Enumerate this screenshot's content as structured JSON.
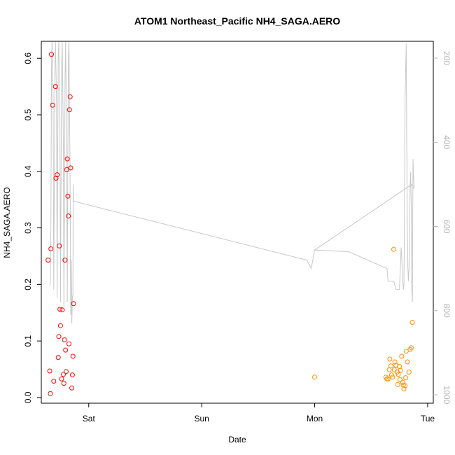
{
  "chart_data": {
    "type": "scatter",
    "title": "ATOM1 Northeast_Pacific NH4_SAGA.AERO",
    "xlabel": "Date",
    "ylabel": "NH4_SAGA.AERO",
    "x_unit": "days",
    "xlim": [
      -0.42,
      3.05
    ],
    "ylim": [
      -0.01,
      0.63
    ],
    "y_ticks": [
      0.0,
      0.1,
      0.2,
      0.3,
      0.4,
      0.5,
      0.6
    ],
    "y_tick_labels": [
      "0.0",
      "0.1",
      "0.2",
      "0.3",
      "0.4",
      "0.5",
      "0.6"
    ],
    "x_ticks": [
      0,
      1,
      2,
      3
    ],
    "x_tick_labels": [
      "Sat",
      "Sun",
      "Mon",
      "Tue"
    ],
    "right_axis": {
      "label": "",
      "reversed": true,
      "lim": [
        160,
        1020
      ],
      "ticks": [
        200,
        400,
        600,
        800,
        1000
      ],
      "tick_labels": [
        "200",
        "400",
        "600",
        "800",
        "1000"
      ],
      "color": "#b3b3b3"
    },
    "grid": false,
    "series": [
      {
        "color": "#ff0000",
        "marker": "open-circle",
        "points": [
          {
            "x": -0.36,
            "y": 0.243
          },
          {
            "x": -0.345,
            "y": 0.047
          },
          {
            "x": -0.34,
            "y": 0.007
          },
          {
            "x": -0.335,
            "y": 0.263
          },
          {
            "x": -0.33,
            "y": 0.607
          },
          {
            "x": -0.32,
            "y": 0.517
          },
          {
            "x": -0.31,
            "y": 0.029
          },
          {
            "x": -0.295,
            "y": 0.55
          },
          {
            "x": -0.29,
            "y": 0.388
          },
          {
            "x": -0.28,
            "y": 0.394
          },
          {
            "x": -0.27,
            "y": 0.071
          },
          {
            "x": -0.265,
            "y": 0.108
          },
          {
            "x": -0.26,
            "y": 0.268
          },
          {
            "x": -0.255,
            "y": 0.156
          },
          {
            "x": -0.25,
            "y": 0.127
          },
          {
            "x": -0.24,
            "y": 0.033
          },
          {
            "x": -0.235,
            "y": 0.155
          },
          {
            "x": -0.225,
            "y": 0.041
          },
          {
            "x": -0.22,
            "y": 0.025
          },
          {
            "x": -0.215,
            "y": 0.102
          },
          {
            "x": -0.21,
            "y": 0.243
          },
          {
            "x": -0.205,
            "y": 0.084
          },
          {
            "x": -0.2,
            "y": 0.046
          },
          {
            "x": -0.195,
            "y": 0.403
          },
          {
            "x": -0.19,
            "y": 0.422
          },
          {
            "x": -0.185,
            "y": 0.356
          },
          {
            "x": -0.18,
            "y": 0.321
          },
          {
            "x": -0.175,
            "y": 0.095
          },
          {
            "x": -0.17,
            "y": 0.509
          },
          {
            "x": -0.165,
            "y": 0.532
          },
          {
            "x": -0.16,
            "y": 0.406
          },
          {
            "x": -0.15,
            "y": 0.017
          },
          {
            "x": -0.145,
            "y": 0.04
          },
          {
            "x": -0.14,
            "y": 0.073
          },
          {
            "x": -0.135,
            "y": 0.166
          }
        ]
      },
      {
        "color": "#ff8c00",
        "marker": "open-circle",
        "points": [
          {
            "x": 2.0,
            "y": 0.036
          },
          {
            "x": 2.63,
            "y": 0.036
          },
          {
            "x": 2.64,
            "y": 0.033
          },
          {
            "x": 2.65,
            "y": 0.033
          },
          {
            "x": 2.66,
            "y": 0.049
          },
          {
            "x": 2.665,
            "y": 0.068
          },
          {
            "x": 2.675,
            "y": 0.056
          },
          {
            "x": 2.68,
            "y": 0.04
          },
          {
            "x": 2.69,
            "y": 0.036
          },
          {
            "x": 2.7,
            "y": 0.262
          },
          {
            "x": 2.705,
            "y": 0.049
          },
          {
            "x": 2.71,
            "y": 0.063
          },
          {
            "x": 2.72,
            "y": 0.057
          },
          {
            "x": 2.73,
            "y": 0.045
          },
          {
            "x": 2.735,
            "y": 0.023
          },
          {
            "x": 2.74,
            "y": 0.041
          },
          {
            "x": 2.75,
            "y": 0.055
          },
          {
            "x": 2.755,
            "y": 0.032
          },
          {
            "x": 2.76,
            "y": 0.048
          },
          {
            "x": 2.77,
            "y": 0.073
          },
          {
            "x": 2.78,
            "y": 0.027
          },
          {
            "x": 2.785,
            "y": 0.022
          },
          {
            "x": 2.79,
            "y": 0.015
          },
          {
            "x": 2.8,
            "y": 0.021
          },
          {
            "x": 2.805,
            "y": 0.035
          },
          {
            "x": 2.81,
            "y": 0.082
          },
          {
            "x": 2.82,
            "y": 0.063
          },
          {
            "x": 2.835,
            "y": 0.045
          },
          {
            "x": 2.845,
            "y": 0.085
          },
          {
            "x": 2.855,
            "y": 0.088
          },
          {
            "x": 2.865,
            "y": 0.133
          }
        ]
      }
    ],
    "altitude_line": {
      "color": "#c8c8c8",
      "points": [
        [
          -0.345,
          740
        ],
        [
          -0.34,
          730
        ],
        [
          -0.335,
          600
        ],
        [
          -0.33,
          230
        ],
        [
          -0.325,
          160
        ],
        [
          -0.315,
          300
        ],
        [
          -0.31,
          750
        ],
        [
          -0.305,
          500
        ],
        [
          -0.3,
          250
        ],
        [
          -0.295,
          160
        ],
        [
          -0.285,
          300
        ],
        [
          -0.28,
          770
        ],
        [
          -0.275,
          450
        ],
        [
          -0.27,
          200
        ],
        [
          -0.265,
          160
        ],
        [
          -0.255,
          350
        ],
        [
          -0.25,
          780
        ],
        [
          -0.245,
          500
        ],
        [
          -0.24,
          230
        ],
        [
          -0.235,
          160
        ],
        [
          -0.225,
          400
        ],
        [
          -0.22,
          790
        ],
        [
          -0.215,
          550
        ],
        [
          -0.21,
          260
        ],
        [
          -0.205,
          160
        ],
        [
          -0.195,
          400
        ],
        [
          -0.19,
          780
        ],
        [
          -0.185,
          450
        ],
        [
          -0.18,
          200
        ],
        [
          -0.175,
          160
        ],
        [
          -0.165,
          500
        ],
        [
          -0.16,
          810
        ],
        [
          -0.155,
          680
        ],
        [
          -0.15,
          830
        ],
        [
          -0.145,
          770
        ],
        [
          -0.14,
          760
        ],
        [
          -0.138,
          500
        ],
        [
          -0.135,
          540
        ],
        [
          1.93,
          680
        ],
        [
          1.95,
          690
        ],
        [
          1.97,
          700
        ],
        [
          2.0,
          656
        ],
        [
          2.3,
          660
        ],
        [
          2.64,
          700
        ],
        [
          2.65,
          730
        ],
        [
          2.67,
          730
        ],
        [
          2.7,
          730
        ],
        [
          2.72,
          750
        ],
        [
          2.73,
          750
        ],
        [
          2.75,
          750
        ],
        [
          2.76,
          690
        ],
        [
          2.765,
          650
        ],
        [
          2.77,
          670
        ],
        [
          2.775,
          700
        ],
        [
          2.78,
          730
        ],
        [
          2.785,
          750
        ],
        [
          2.79,
          740
        ],
        [
          2.795,
          600
        ],
        [
          2.8,
          300
        ],
        [
          2.805,
          230
        ],
        [
          2.81,
          165
        ],
        [
          2.815,
          400
        ],
        [
          2.82,
          600
        ],
        [
          2.825,
          700
        ],
        [
          2.83,
          730
        ],
        [
          2.835,
          700
        ],
        [
          2.84,
          600
        ],
        [
          2.845,
          500
        ],
        [
          2.85,
          470
        ],
        [
          2.855,
          550
        ],
        [
          2.86,
          750
        ],
        [
          2.865,
          780
        ],
        [
          2.87,
          440
        ],
        [
          2.875,
          480
        ],
        [
          2.88,
          510
        ],
        [
          2.86,
          500
        ],
        [
          2.0,
          656
        ]
      ]
    }
  }
}
